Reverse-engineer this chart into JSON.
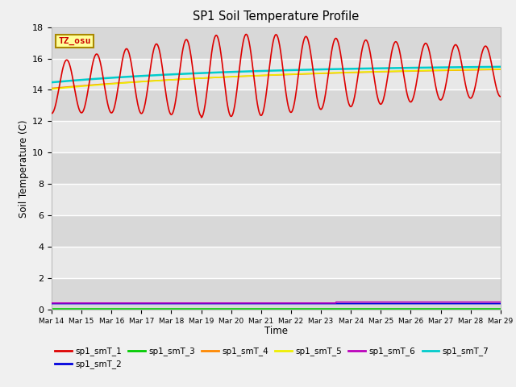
{
  "title": "SP1 Soil Temperature Profile",
  "xlabel": "Time",
  "ylabel": "Soil Temperature (C)",
  "ylim": [
    0,
    18
  ],
  "annotation_text": "TZ_osu",
  "annotation_color": "#cc0000",
  "annotation_bg": "#ffff99",
  "annotation_border": "#aa8800",
  "series": [
    {
      "name": "sp1_smT_1",
      "color": "#dd0000",
      "lw": 1.2
    },
    {
      "name": "sp1_smT_2",
      "color": "#0000dd",
      "lw": 1.2
    },
    {
      "name": "sp1_smT_3",
      "color": "#00cc00",
      "lw": 1.2
    },
    {
      "name": "sp1_smT_4",
      "color": "#ff8800",
      "lw": 1.2
    },
    {
      "name": "sp1_smT_5",
      "color": "#eeee00",
      "lw": 1.2
    },
    {
      "name": "sp1_smT_6",
      "color": "#bb00bb",
      "lw": 1.2
    },
    {
      "name": "sp1_smT_7",
      "color": "#00cccc",
      "lw": 1.8
    }
  ],
  "plot_bg": "#e8e8e8",
  "band_bg": "#d8d8d8",
  "grid_color": "#ffffff",
  "tick_labels": [
    "Mar 14",
    "Mar 15",
    "Mar 16",
    "Mar 17",
    "Mar 18",
    "Mar 19",
    "Mar 20",
    "Mar 21",
    "Mar 22",
    "Mar 23",
    "Mar 24",
    "Mar 25",
    "Mar 26",
    "Mar 27",
    "Mar 28",
    "Mar 29"
  ]
}
